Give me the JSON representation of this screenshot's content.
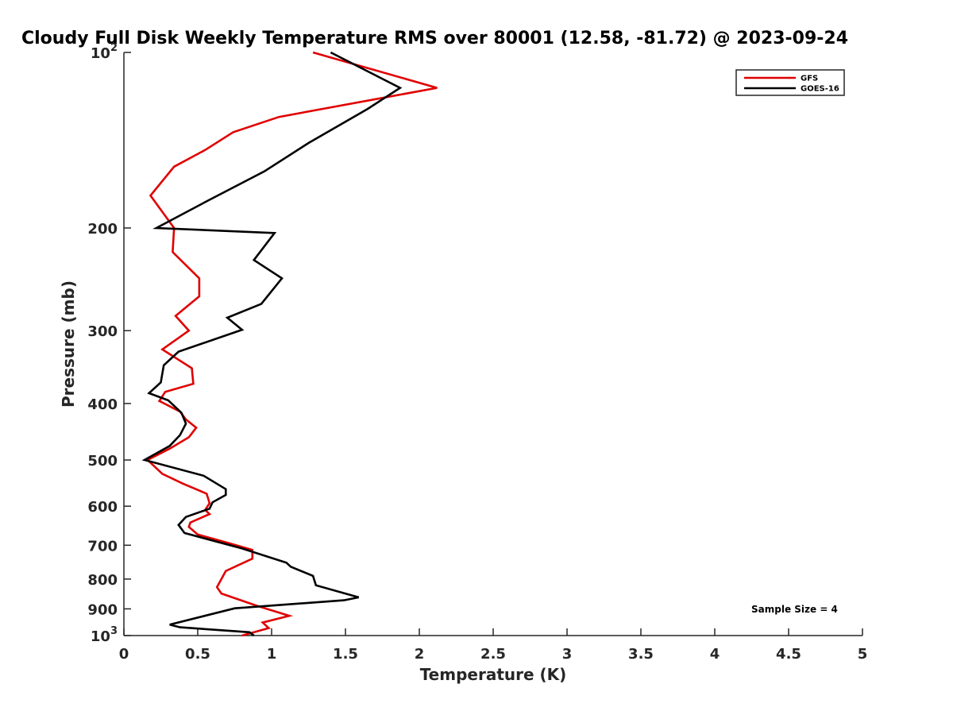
{
  "chart_data": {
    "type": "line",
    "title": "Cloudy Full Disk Weekly Temperature RMS over 80001 (12.58, -81.72) @ 2023-09-24",
    "xlabel": "Temperature (K)",
    "ylabel": "Pressure (mb)",
    "xlim": [
      0,
      5
    ],
    "ylim": [
      100,
      1000
    ],
    "y_scale": "log",
    "y_reversed": true,
    "x_ticks": [
      "0",
      "0.5",
      "1",
      "1.5",
      "2",
      "2.5",
      "3",
      "3.5",
      "4",
      "4.5",
      "5"
    ],
    "y_ticks": [
      {
        "value": 100,
        "base": "10",
        "exp": "2"
      },
      {
        "value": 200,
        "label": "200"
      },
      {
        "value": 300,
        "label": "300"
      },
      {
        "value": 400,
        "label": "400"
      },
      {
        "value": 500,
        "label": "500"
      },
      {
        "value": 600,
        "label": "600"
      },
      {
        "value": 700,
        "label": "700"
      },
      {
        "value": 800,
        "label": "800"
      },
      {
        "value": 900,
        "label": "900"
      },
      {
        "value": 1000,
        "base": "10",
        "exp": "3"
      }
    ],
    "grid": false,
    "legend_position": "top-right",
    "annotation": "Sample Size = 4",
    "series": [
      {
        "name": "GFS",
        "color": "#e00000",
        "points": [
          [
            1.28,
            100
          ],
          [
            2.12,
            115
          ],
          [
            1.05,
            129
          ],
          [
            0.74,
            137
          ],
          [
            0.55,
            147
          ],
          [
            0.34,
            157
          ],
          [
            0.18,
            176
          ],
          [
            0.34,
            200
          ],
          [
            0.33,
            220
          ],
          [
            0.51,
            244
          ],
          [
            0.51,
            262
          ],
          [
            0.35,
            283
          ],
          [
            0.44,
            300
          ],
          [
            0.26,
            323
          ],
          [
            0.46,
            348
          ],
          [
            0.47,
            370
          ],
          [
            0.28,
            382
          ],
          [
            0.24,
            396
          ],
          [
            0.38,
            413
          ],
          [
            0.42,
            426
          ],
          [
            0.49,
            440
          ],
          [
            0.44,
            457
          ],
          [
            0.31,
            478
          ],
          [
            0.16,
            500
          ],
          [
            0.26,
            528
          ],
          [
            0.4,
            549
          ],
          [
            0.56,
            571
          ],
          [
            0.58,
            593
          ],
          [
            0.55,
            609
          ],
          [
            0.58,
            619
          ],
          [
            0.45,
            640
          ],
          [
            0.44,
            651
          ],
          [
            0.5,
            671
          ],
          [
            0.71,
            694
          ],
          [
            0.87,
            713
          ],
          [
            0.87,
            738
          ],
          [
            0.69,
            775
          ],
          [
            0.63,
            826
          ],
          [
            0.66,
            847
          ],
          [
            0.9,
            889
          ],
          [
            1.12,
            925
          ],
          [
            0.94,
            950
          ],
          [
            0.98,
            971
          ],
          [
            0.8,
            1000
          ]
        ]
      },
      {
        "name": "GOES-16",
        "color": "#000000",
        "points": [
          [
            1.4,
            100
          ],
          [
            1.87,
            115
          ],
          [
            1.65,
            125
          ],
          [
            1.25,
            143
          ],
          [
            0.95,
            160
          ],
          [
            0.56,
            180
          ],
          [
            0.22,
            200
          ],
          [
            1.02,
            204
          ],
          [
            0.88,
            227
          ],
          [
            1.07,
            244
          ],
          [
            0.93,
            270
          ],
          [
            0.7,
            285
          ],
          [
            0.8,
            299
          ],
          [
            0.37,
            326
          ],
          [
            0.27,
            344
          ],
          [
            0.25,
            368
          ],
          [
            0.17,
            384
          ],
          [
            0.3,
            395
          ],
          [
            0.39,
            415
          ],
          [
            0.42,
            433
          ],
          [
            0.38,
            453
          ],
          [
            0.31,
            473
          ],
          [
            0.14,
            500
          ],
          [
            0.54,
            532
          ],
          [
            0.69,
            561
          ],
          [
            0.69,
            574
          ],
          [
            0.6,
            591
          ],
          [
            0.58,
            606
          ],
          [
            0.42,
            626
          ],
          [
            0.37,
            646
          ],
          [
            0.41,
            667
          ],
          [
            0.8,
            709
          ],
          [
            1.1,
            750
          ],
          [
            1.13,
            762
          ],
          [
            1.28,
            790
          ],
          [
            1.3,
            820
          ],
          [
            1.59,
            860
          ],
          [
            1.49,
            870
          ],
          [
            0.75,
            898
          ],
          [
            0.31,
            958
          ],
          [
            0.38,
            968
          ],
          [
            0.85,
            987
          ],
          [
            0.88,
            1000
          ]
        ]
      }
    ]
  }
}
